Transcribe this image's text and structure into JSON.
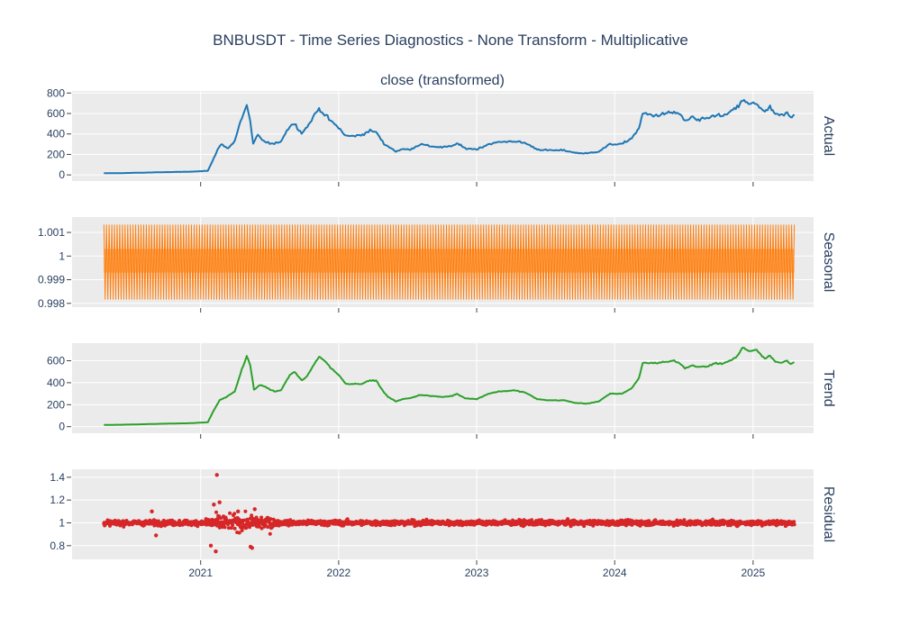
{
  "title": "BNBUSDT - Time Series Diagnostics - None Transform - Multiplicative",
  "subtitle": "close (transformed)",
  "chart_data": [
    {
      "type": "line",
      "panel": "Actual",
      "color": "#1f77b4",
      "x": [
        "2020-04-20",
        "2020-06-01",
        "2020-08-01",
        "2020-10-01",
        "2020-12-01",
        "2021-01-20",
        "2021-02-01",
        "2021-02-15",
        "2021-02-25",
        "2021-03-15",
        "2021-04-01",
        "2021-04-20",
        "2021-05-03",
        "2021-05-12",
        "2021-05-20",
        "2021-06-01",
        "2021-06-20",
        "2021-07-15",
        "2021-08-01",
        "2021-08-25",
        "2021-09-06",
        "2021-09-25",
        "2021-10-10",
        "2021-10-25",
        "2021-11-10",
        "2021-11-25",
        "2021-12-10",
        "2022-01-01",
        "2022-01-20",
        "2022-02-10",
        "2022-03-01",
        "2022-03-25",
        "2022-04-10",
        "2022-05-01",
        "2022-05-12",
        "2022-06-01",
        "2022-06-18",
        "2022-07-10",
        "2022-08-05",
        "2022-09-01",
        "2022-10-01",
        "2022-10-29",
        "2022-11-09",
        "2022-12-01",
        "2023-01-01",
        "2023-02-01",
        "2023-03-01",
        "2023-04-10",
        "2023-05-10",
        "2023-06-10",
        "2023-07-10",
        "2023-08-20",
        "2023-09-20",
        "2023-10-20",
        "2023-11-20",
        "2023-12-20",
        "2024-01-20",
        "2024-02-15",
        "2024-03-05",
        "2024-03-15",
        "2024-04-01",
        "2024-04-20",
        "2024-05-15",
        "2024-06-06",
        "2024-06-20",
        "2024-07-05",
        "2024-07-25",
        "2024-08-05",
        "2024-09-01",
        "2024-09-25",
        "2024-10-10",
        "2024-11-01",
        "2024-11-20",
        "2024-12-04",
        "2024-12-20",
        "2025-01-10",
        "2025-02-01",
        "2025-02-15",
        "2025-03-01",
        "2025-03-15",
        "2025-04-01",
        "2025-04-10",
        "2025-04-20"
      ],
      "y": [
        16,
        17,
        22,
        27,
        31,
        40,
        130,
        250,
        300,
        260,
        330,
        560,
        680,
        520,
        300,
        390,
        320,
        300,
        330,
        480,
        500,
        410,
        470,
        560,
        650,
        590,
        530,
        460,
        380,
        380,
        390,
        430,
        420,
        300,
        280,
        230,
        250,
        250,
        300,
        280,
        270,
        280,
        310,
        260,
        250,
        300,
        320,
        330,
        310,
        250,
        240,
        240,
        215,
        210,
        230,
        300,
        300,
        360,
        450,
        600,
        590,
        580,
        600,
        610,
        600,
        520,
        570,
        530,
        550,
        590,
        570,
        610,
        660,
        730,
        690,
        700,
        610,
        660,
        590,
        580,
        600,
        560,
        590
      ]
    },
    {
      "type": "line",
      "panel": "Seasonal",
      "color": "#ff7f0e",
      "x_start": "2020-04-20",
      "x_end": "2025-04-20",
      "y_min": 0.99816,
      "y_max": 1.00133,
      "y_ticks": [
        0.998,
        0.999,
        1,
        1.001
      ]
    },
    {
      "type": "line",
      "panel": "Trend",
      "color": "#2ca02c",
      "x": [
        "2020-04-20",
        "2020-06-01",
        "2020-08-01",
        "2020-10-01",
        "2020-12-01",
        "2021-01-20",
        "2021-02-05",
        "2021-02-20",
        "2021-03-10",
        "2021-04-01",
        "2021-04-20",
        "2021-05-03",
        "2021-05-12",
        "2021-05-22",
        "2021-06-10",
        "2021-07-15",
        "2021-08-01",
        "2021-08-25",
        "2021-09-06",
        "2021-09-25",
        "2021-10-10",
        "2021-10-25",
        "2021-11-10",
        "2021-11-25",
        "2021-12-10",
        "2022-01-01",
        "2022-01-20",
        "2022-02-10",
        "2022-03-01",
        "2022-03-25",
        "2022-04-10",
        "2022-05-01",
        "2022-05-12",
        "2022-06-01",
        "2022-06-18",
        "2022-07-10",
        "2022-08-05",
        "2022-09-01",
        "2022-10-01",
        "2022-10-29",
        "2022-11-09",
        "2022-12-01",
        "2023-01-01",
        "2023-02-01",
        "2023-03-01",
        "2023-04-10",
        "2023-05-10",
        "2023-06-10",
        "2023-07-10",
        "2023-08-20",
        "2023-09-20",
        "2023-10-20",
        "2023-11-20",
        "2023-12-20",
        "2024-01-20",
        "2024-02-15",
        "2024-03-05",
        "2024-03-15",
        "2024-04-01",
        "2024-04-20",
        "2024-05-15",
        "2024-06-06",
        "2024-06-20",
        "2024-07-05",
        "2024-07-25",
        "2024-08-05",
        "2024-09-01",
        "2024-09-25",
        "2024-10-10",
        "2024-11-01",
        "2024-11-20",
        "2024-12-04",
        "2024-12-20",
        "2025-01-10",
        "2025-02-01",
        "2025-02-15",
        "2025-03-01",
        "2025-03-15",
        "2025-04-01",
        "2025-04-10",
        "2025-04-20"
      ],
      "y": [
        16,
        17,
        22,
        27,
        31,
        40,
        150,
        240,
        270,
        320,
        520,
        640,
        560,
        340,
        380,
        320,
        330,
        470,
        500,
        420,
        460,
        550,
        640,
        600,
        540,
        470,
        390,
        390,
        390,
        420,
        420,
        310,
        270,
        230,
        250,
        260,
        290,
        280,
        270,
        280,
        300,
        260,
        250,
        300,
        320,
        330,
        310,
        250,
        240,
        240,
        215,
        210,
        230,
        300,
        300,
        350,
        440,
        580,
        580,
        580,
        590,
        600,
        580,
        530,
        560,
        540,
        550,
        580,
        570,
        600,
        640,
        720,
        690,
        700,
        620,
        650,
        590,
        580,
        600,
        570,
        585
      ]
    },
    {
      "type": "scatter",
      "panel": "Residual",
      "color": "#d62728",
      "x_start": "2020-04-20",
      "x_end": "2025-04-20",
      "center": 1,
      "outliers": [
        {
          "x": "2021-02-13",
          "y": 1.42
        },
        {
          "x": "2021-02-10",
          "y": 0.75
        },
        {
          "x": "2021-01-28",
          "y": 0.8
        },
        {
          "x": "2021-05-13",
          "y": 0.79
        },
        {
          "x": "2021-05-17",
          "y": 0.78
        },
        {
          "x": "2021-02-20",
          "y": 1.18
        },
        {
          "x": "2021-02-05",
          "y": 1.16
        },
        {
          "x": "2021-04-10",
          "y": 1.1
        },
        {
          "x": "2020-08-25",
          "y": 1.1
        },
        {
          "x": "2020-09-05",
          "y": 0.89
        },
        {
          "x": "2021-05-24",
          "y": 1.12
        }
      ],
      "y_ticks": [
        0.8,
        1,
        1.2,
        1.4
      ]
    }
  ],
  "panels": [
    {
      "label": "Actual",
      "y_ticks": [
        "0",
        "200",
        "400",
        "600",
        "800"
      ]
    },
    {
      "label": "Seasonal",
      "y_ticks": [
        "0.998",
        "0.999",
        "1",
        "1.001"
      ]
    },
    {
      "label": "Trend",
      "y_ticks": [
        "0",
        "200",
        "400",
        "600"
      ]
    },
    {
      "label": "Residual",
      "y_ticks": [
        "0.8",
        "1",
        "1.2",
        "1.4"
      ]
    }
  ],
  "x_ticks": [
    "2021",
    "2022",
    "2023",
    "2024",
    "2025"
  ],
  "x_domain": [
    "2020-01-27",
    "2025-06-10"
  ],
  "grid": true,
  "background_color": "#ebebeb",
  "grid_color": "#ffffff"
}
